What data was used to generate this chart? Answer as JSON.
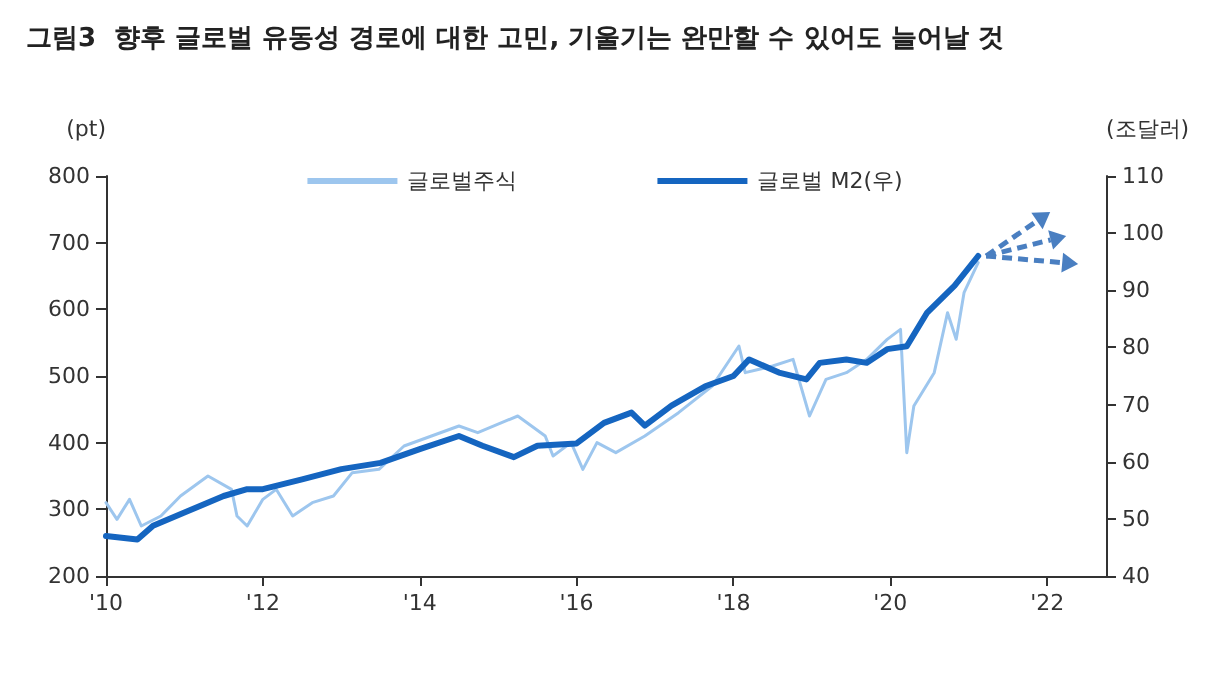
{
  "chart_data": {
    "type": "line",
    "title": "그림3  향후 글로벌 유동성 경로에 대한 고민, 기울기는 완만할 수 있어도 늘어날 것",
    "ylabel": "(pt)",
    "y2label": "(조달러)",
    "xlim": [
      2010,
      2022.75
    ],
    "xticks": [
      {
        "value": 2010,
        "label": "'10"
      },
      {
        "value": 2012,
        "label": "'12"
      },
      {
        "value": 2014,
        "label": "'14"
      },
      {
        "value": 2016,
        "label": "'16"
      },
      {
        "value": 2018,
        "label": "'18"
      },
      {
        "value": 2020,
        "label": "'20"
      },
      {
        "value": 2022,
        "label": "'22"
      }
    ],
    "ylim": [
      200,
      800
    ],
    "yticks": [
      200,
      300,
      400,
      500,
      600,
      700,
      800
    ],
    "y2lim": [
      40,
      110
    ],
    "y2ticks": [
      40,
      50,
      60,
      70,
      80,
      90,
      100,
      110
    ],
    "grid": false,
    "legend": "top",
    "marker": "none",
    "line_style": "solid",
    "series": [
      {
        "name": "글로벌주식",
        "color": "#9dc6ee",
        "x": [
          2010,
          2010.14,
          2010.3,
          2010.45,
          2010.7,
          2010.95,
          2011.3,
          2011.6,
          2011.67,
          2011.8,
          2012,
          2012.17,
          2012.38,
          2012.63,
          2012.9,
          2013.14,
          2013.48,
          2013.8,
          2014.15,
          2014.5,
          2014.74,
          2015.25,
          2015.6,
          2015.7,
          2015.93,
          2016.08,
          2016.26,
          2016.5,
          2016.87,
          2017.3,
          2017.73,
          2018.07,
          2018.15,
          2018.5,
          2018.76,
          2018.97,
          2019.18,
          2019.44,
          2019.7,
          2019.96,
          2020.13,
          2020.21,
          2020.3,
          2020.56,
          2020.73,
          2020.84,
          2020.94,
          2021.12
        ],
        "values": [
          310,
          285,
          315,
          275,
          290,
          320,
          350,
          330,
          290,
          275,
          315,
          330,
          290,
          310,
          320,
          355,
          360,
          395,
          410,
          425,
          415,
          440,
          410,
          380,
          400,
          360,
          400,
          385,
          410,
          445,
          485,
          545,
          505,
          515,
          525,
          440,
          495,
          505,
          525,
          555,
          570,
          385,
          455,
          505,
          595,
          555,
          625,
          670
        ]
      },
      {
        "name": "글로벌 M2(우)",
        "color": "#1565c0",
        "axis": "y2",
        "x": [
          2010,
          2010.4,
          2010.6,
          2011,
          2011.5,
          2011.8,
          2012,
          2012.5,
          2013,
          2013.5,
          2014,
          2014.5,
          2014.8,
          2015.2,
          2015.5,
          2016,
          2016.35,
          2016.7,
          2016.87,
          2017.21,
          2017.64,
          2018,
          2018.2,
          2018.58,
          2018.93,
          2019.1,
          2019.44,
          2019.7,
          2019.96,
          2020.21,
          2020.47,
          2020.82,
          2021.12
        ],
        "values": [
          47,
          46.4,
          48.8,
          51.1,
          54,
          55.2,
          55.2,
          56.9,
          58.7,
          59.8,
          62.2,
          64.5,
          62.8,
          60.8,
          62.8,
          63.2,
          66.8,
          68.6,
          66.3,
          69.8,
          73.2,
          75,
          77.9,
          75.6,
          74.4,
          77.3,
          77.9,
          77.3,
          79.7,
          80.2,
          86.1,
          90.8,
          96
        ]
      }
    ]
  }
}
